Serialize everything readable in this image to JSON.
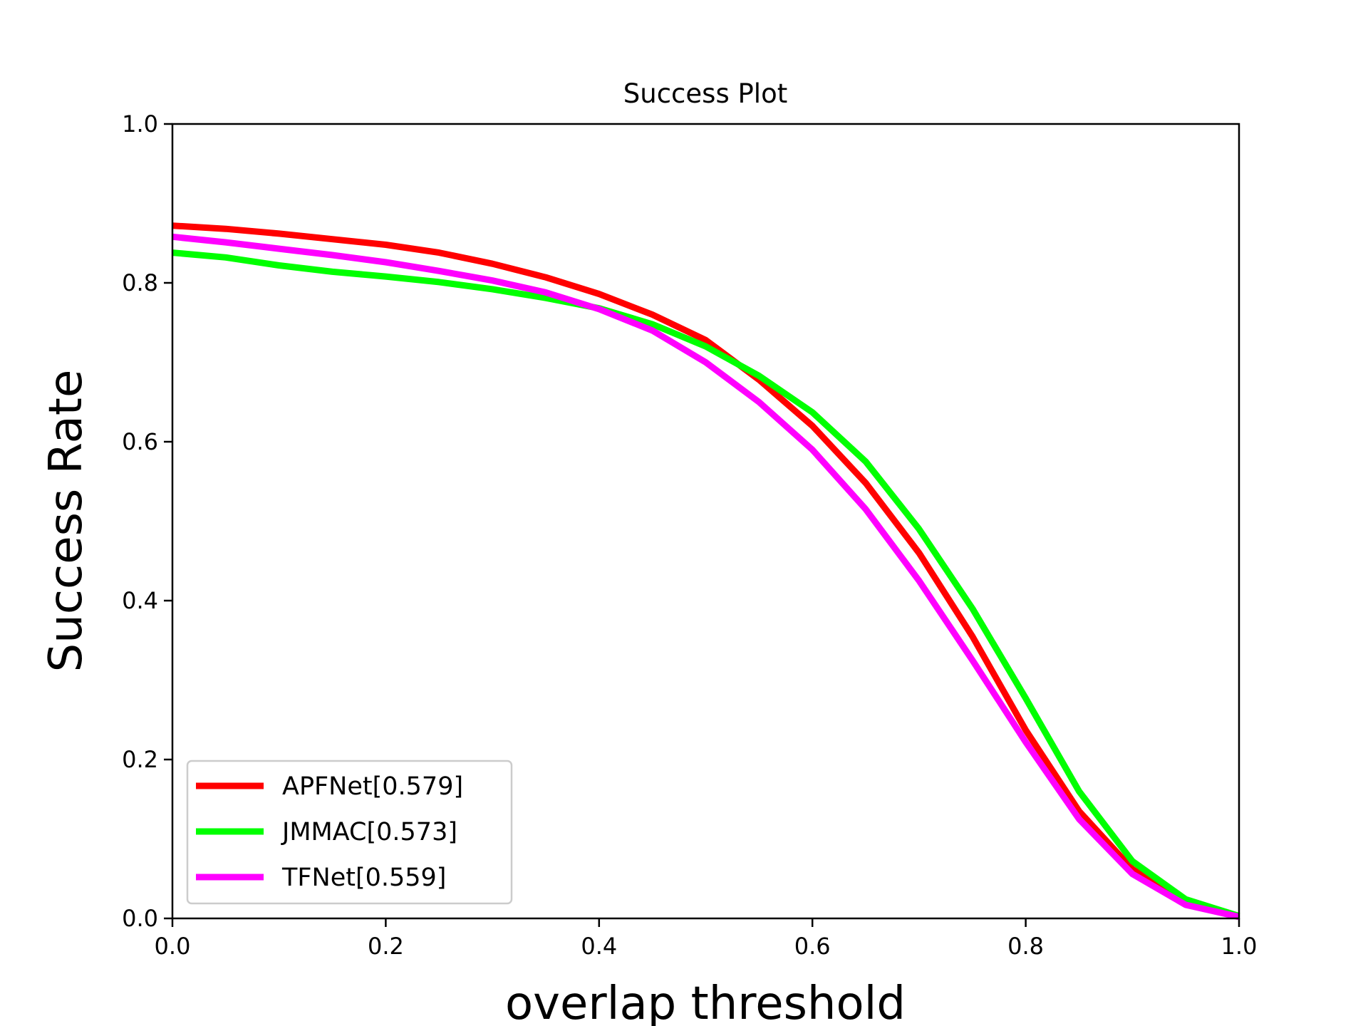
{
  "chart_data": {
    "type": "line",
    "title": "Success Plot",
    "xlabel": "overlap threshold",
    "ylabel": "Success Rate",
    "xlim": [
      0,
      1
    ],
    "ylim": [
      0,
      1
    ],
    "xticks": [
      "0.0",
      "0.2",
      "0.4",
      "0.6",
      "0.8",
      "1.0"
    ],
    "yticks": [
      "0.0",
      "0.2",
      "0.4",
      "0.6",
      "0.8",
      "1.0"
    ],
    "grid": false,
    "legend_position": "lower-left",
    "x": [
      0,
      0.05,
      0.1,
      0.15,
      0.2,
      0.25,
      0.3,
      0.35,
      0.4,
      0.45,
      0.5,
      0.55,
      0.6,
      0.65,
      0.7,
      0.75,
      0.8,
      0.85,
      0.9,
      0.95,
      1.0
    ],
    "series": [
      {
        "name": "APFNet[0.579]",
        "color": "#ff0000",
        "values": [
          0.872,
          0.868,
          0.862,
          0.855,
          0.848,
          0.838,
          0.824,
          0.807,
          0.786,
          0.76,
          0.728,
          0.678,
          0.62,
          0.548,
          0.46,
          0.355,
          0.237,
          0.135,
          0.062,
          0.02,
          0.002
        ]
      },
      {
        "name": "JMMAC[0.573]",
        "color": "#00ff00",
        "values": [
          0.838,
          0.832,
          0.822,
          0.814,
          0.808,
          0.801,
          0.792,
          0.781,
          0.768,
          0.748,
          0.72,
          0.683,
          0.637,
          0.575,
          0.49,
          0.39,
          0.277,
          0.16,
          0.072,
          0.024,
          0.003
        ]
      },
      {
        "name": "TFNet[0.559]",
        "color": "#ff00ff",
        "values": [
          0.858,
          0.851,
          0.843,
          0.835,
          0.826,
          0.815,
          0.803,
          0.788,
          0.767,
          0.74,
          0.7,
          0.65,
          0.59,
          0.515,
          0.425,
          0.325,
          0.222,
          0.125,
          0.056,
          0.017,
          0.002
        ]
      }
    ]
  }
}
